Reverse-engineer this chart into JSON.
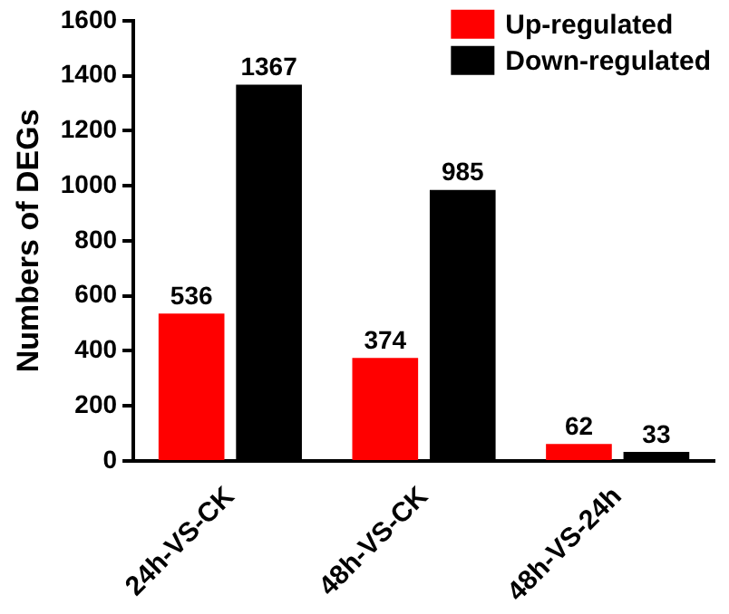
{
  "chart_data": {
    "type": "bar",
    "ylabel": "Numbers of DEGs",
    "categories": [
      "24h-VS-CK",
      "48h-VS-CK",
      "48h-VS-24h"
    ],
    "series": [
      {
        "name": "Up-regulated",
        "color": "#ff0000",
        "values": [
          536,
          374,
          62
        ]
      },
      {
        "name": "Down-regulated",
        "color": "#000000",
        "values": [
          1367,
          985,
          33
        ]
      }
    ],
    "ylim": [
      0,
      1600
    ],
    "yticks": [
      0,
      200,
      400,
      600,
      800,
      1000,
      1200,
      1400,
      1600
    ],
    "grid": false,
    "legend": "top right",
    "data_labels": true
  }
}
